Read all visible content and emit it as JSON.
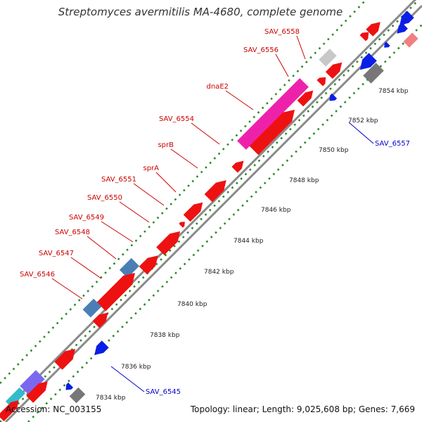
{
  "title": "Streptomyces avermitilis MA-4680, complete genome",
  "footer": {
    "accession": "Accession: NC_003155",
    "stats": "Topology: linear; Length: 9,025,608 bp; Genes: 7,669"
  },
  "gene_labels_forward": [
    "SAV_6558",
    "SAV_6556",
    "dnaE2",
    "SAV_6554",
    "sprB",
    "sprA",
    "SAV_6551",
    "SAV_6550",
    "SAV_6549",
    "SAV_6548",
    "SAV_6547",
    "SAV_6546"
  ],
  "gene_labels_reverse": [
    "SAV_6557",
    "SAV_6545"
  ],
  "position_ticks": [
    "7834 kbp",
    "7836 kbp",
    "7838 kbp",
    "7840 kbp",
    "7842 kbp",
    "7844 kbp",
    "7846 kbp",
    "7848 kbp",
    "7850 kbp",
    "7852 kbp",
    "7854 kbp"
  ],
  "colors": {
    "cds": "#ee1111",
    "highlight": "#ee22aa",
    "rna_blue": "#4a7fb5",
    "reverse": "#0a1ee6",
    "gray": "#777777",
    "backbone": "#8a8a8a",
    "dots": "#2a8a2a",
    "label_forward": "#cc0000",
    "label_reverse": "#0000cc"
  }
}
